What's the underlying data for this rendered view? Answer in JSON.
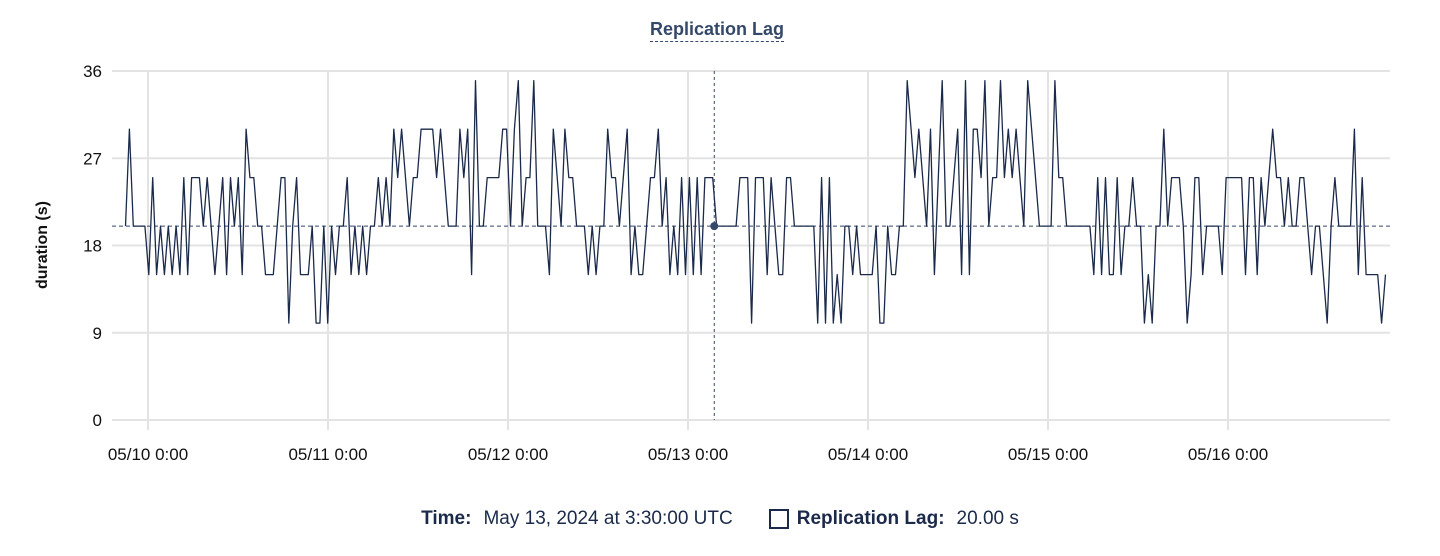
{
  "title": "Replication Lag",
  "chart_data": {
    "type": "line",
    "title": "Replication Lag",
    "xlabel": "",
    "ylabel": "duration (s)",
    "ylim": [
      0,
      36
    ],
    "yticks": [
      0,
      9,
      18,
      27,
      36
    ],
    "xlim": [
      "2024-05-09T19:12:00Z",
      "2024-05-16T21:36:00Z"
    ],
    "xticks": [
      {
        "t": "2024-05-10T00:00:00Z",
        "label": "05/10 0:00"
      },
      {
        "t": "2024-05-11T00:00:00Z",
        "label": "05/11 0:00"
      },
      {
        "t": "2024-05-12T00:00:00Z",
        "label": "05/12 0:00"
      },
      {
        "t": "2024-05-13T00:00:00Z",
        "label": "05/13 0:00"
      },
      {
        "t": "2024-05-14T00:00:00Z",
        "label": "05/14 0:00"
      },
      {
        "t": "2024-05-15T00:00:00Z",
        "label": "05/15 0:00"
      },
      {
        "t": "2024-05-16T00:00:00Z",
        "label": "05/16 0:00"
      }
    ],
    "grid": true,
    "series": [
      {
        "name": "Replication Lag",
        "color": "#1b2a4a",
        "x_start": "2024-05-09T21:00:00Z",
        "x_end": "2024-05-16T21:00:00Z",
        "values": [
          20,
          30,
          20,
          20,
          20,
          20,
          15,
          25,
          15,
          20,
          15,
          20,
          15,
          20,
          15,
          25,
          15,
          25,
          25,
          25,
          20,
          25,
          20,
          15,
          20,
          25,
          15,
          25,
          20,
          25,
          15,
          30,
          25,
          25,
          20,
          20,
          15,
          15,
          15,
          20,
          25,
          25,
          10,
          20,
          25,
          15,
          15,
          15,
          20,
          10,
          10,
          20,
          10,
          20,
          15,
          20,
          20,
          25,
          15,
          20,
          15,
          20,
          15,
          20,
          20,
          25,
          20,
          25,
          20,
          30,
          25,
          30,
          25,
          20,
          25,
          25,
          30,
          30,
          30,
          30,
          25,
          30,
          25,
          20,
          20,
          20,
          30,
          25,
          30,
          15,
          35,
          20,
          20,
          25,
          25,
          25,
          25,
          30,
          30,
          20,
          30,
          35,
          20,
          25,
          25,
          35,
          20,
          20,
          20,
          15,
          30,
          25,
          20,
          30,
          25,
          25,
          20,
          20,
          20,
          15,
          20,
          15,
          20,
          20,
          30,
          25,
          25,
          20,
          25,
          30,
          15,
          20,
          15,
          15,
          20,
          25,
          25,
          30,
          20,
          25,
          15,
          20,
          15,
          25,
          15,
          25,
          15,
          25,
          15,
          25,
          25,
          25,
          20,
          20,
          20,
          20,
          20,
          20,
          25,
          25,
          25,
          10,
          25,
          25,
          25,
          15,
          25,
          20,
          15,
          15,
          25,
          25,
          20,
          20,
          20,
          20,
          20,
          20,
          10,
          25,
          10,
          25,
          10,
          15,
          10,
          20,
          20,
          15,
          20,
          15,
          15,
          15,
          15,
          20,
          10,
          10,
          20,
          15,
          15,
          20,
          20,
          35,
          30,
          25,
          30,
          25,
          20,
          30,
          15,
          25,
          35,
          20,
          20,
          25,
          30,
          15,
          35,
          15,
          30,
          30,
          25,
          35,
          20,
          25,
          25,
          35,
          25,
          30,
          25,
          30,
          25,
          20,
          35,
          30,
          25,
          20,
          20,
          20,
          20,
          35,
          25,
          25,
          20,
          20,
          20,
          20,
          20,
          20,
          20,
          15,
          25,
          15,
          25,
          15,
          15,
          25,
          15,
          20,
          20,
          25,
          20,
          20,
          10,
          15,
          10,
          20,
          20,
          30,
          20,
          25,
          25,
          25,
          20,
          10,
          15,
          25,
          25,
          15,
          20,
          20,
          20,
          20,
          15,
          25,
          25,
          25,
          25,
          25,
          15,
          25,
          25,
          15,
          25,
          20,
          25,
          30,
          25,
          25,
          20,
          25,
          20,
          20,
          25,
          25,
          20,
          15,
          20,
          20,
          15,
          10,
          20,
          25,
          20,
          20,
          20,
          20,
          30,
          15,
          25,
          15,
          15,
          15,
          15,
          10,
          15
        ]
      }
    ],
    "hover": {
      "time": "2024-05-13T03:30:00Z",
      "value": 20
    }
  },
  "tooltip": {
    "time_label": "Time:",
    "time_value": "May 13, 2024 at 3:30:00 UTC",
    "series_label": "Replication Lag:",
    "series_value": "20.00 s"
  }
}
